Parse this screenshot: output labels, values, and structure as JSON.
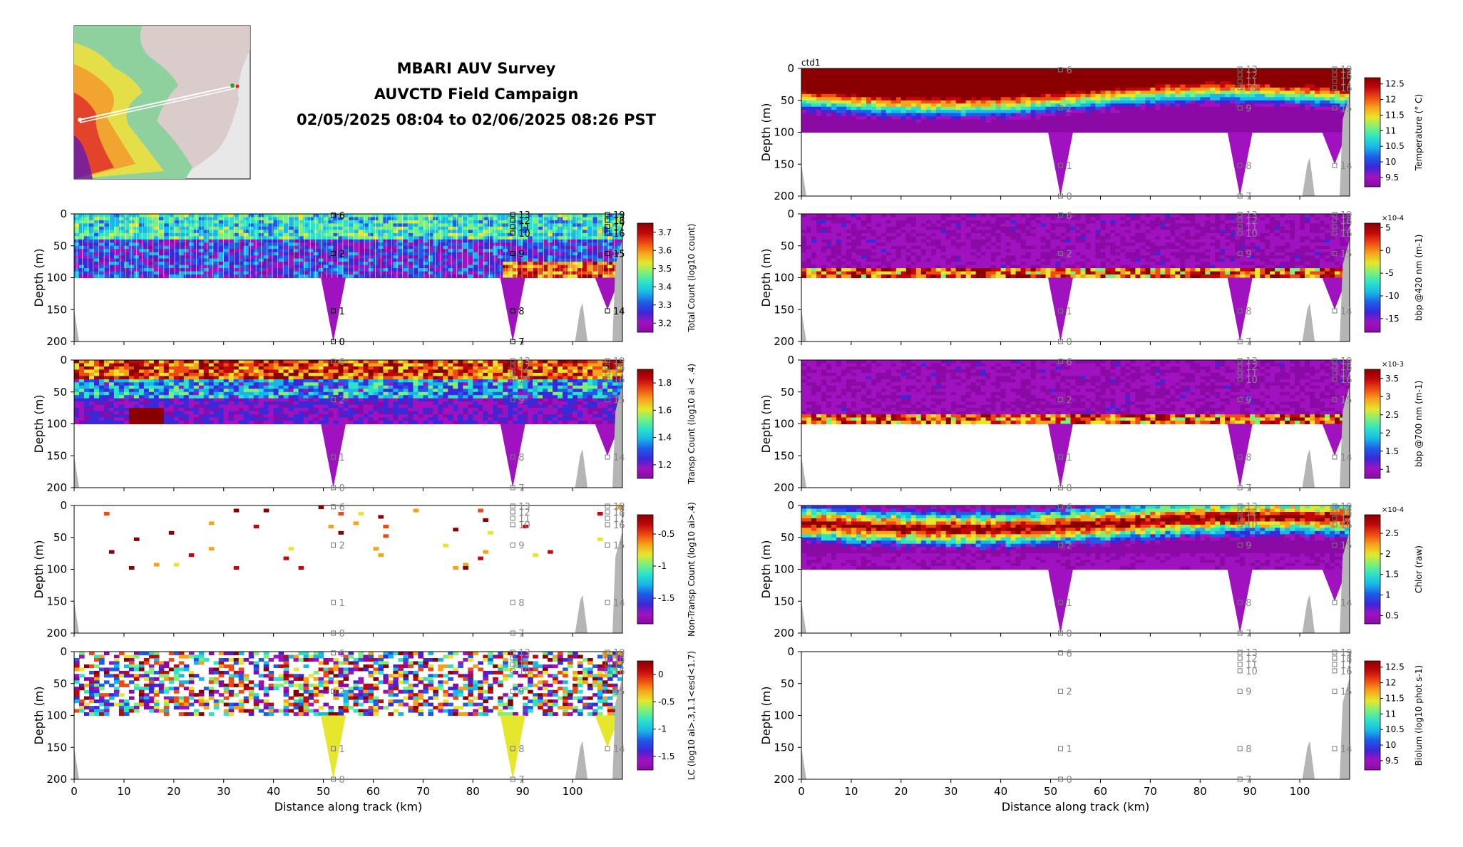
{
  "header": {
    "line1": "MBARI AUV Survey",
    "line2": "AUVCTD Field Campaign",
    "line3": "02/05/2025 08:04 to 02/06/2025 08:26 PST"
  },
  "colors": {
    "cmap": [
      "#8b0aa5",
      "#a012c0",
      "#3a28d9",
      "#1e5ce8",
      "#18b7e8",
      "#2be3c9",
      "#7cf07a",
      "#e6e62c",
      "#f7a21b",
      "#ee4a12",
      "#c2070c",
      "#8a0000"
    ],
    "terrain": "#b5b5b5",
    "profile_line": "#ffffff"
  },
  "chart_data": [
    {
      "type": "heatmap",
      "panel": "total-count",
      "title": "",
      "xlabel": "",
      "ylabel": "Depth (m)",
      "xlim": [
        0,
        110
      ],
      "ylim": [
        200,
        0
      ],
      "xticks": [
        0,
        10,
        20,
        30,
        40,
        50,
        60,
        70,
        80,
        90,
        100
      ],
      "yticks": [
        0,
        50,
        100,
        150,
        200
      ],
      "colorbar": {
        "label": "Total Count (log10 count)",
        "ticks": [
          "3.2",
          "3.3",
          "3.4",
          "3.5",
          "3.6",
          "3.7"
        ],
        "range": [
          3.15,
          3.75
        ]
      },
      "markers": [
        {
          "label": "0",
          "x": 52,
          "depth": 200
        },
        {
          "label": "1",
          "x": 52,
          "depth": 152
        },
        {
          "label": "2",
          "x": 52,
          "depth": 62
        },
        {
          "label": "6",
          "x": 52,
          "depth": 2
        },
        {
          "label": "7",
          "x": 88,
          "depth": 200
        },
        {
          "label": "8",
          "x": 88,
          "depth": 152
        },
        {
          "label": "9",
          "x": 88,
          "depth": 62
        },
        {
          "label": "10",
          "x": 88,
          "depth": 30
        },
        {
          "label": "11",
          "x": 88,
          "depth": 20
        },
        {
          "label": "12",
          "x": 88,
          "depth": 10
        },
        {
          "label": "13",
          "x": 88,
          "depth": 1
        },
        {
          "label": "14",
          "x": 107,
          "depth": 152
        },
        {
          "label": "15",
          "x": 107,
          "depth": 62
        },
        {
          "label": "16",
          "x": 107,
          "depth": 30
        },
        {
          "label": "17",
          "x": 107,
          "depth": 20
        },
        {
          "label": "18",
          "x": 107,
          "depth": 10
        },
        {
          "label": "19",
          "x": 107,
          "depth": 1
        }
      ]
    },
    {
      "type": "heatmap",
      "panel": "transp-count",
      "title": "",
      "xlabel": "",
      "ylabel": "Depth (m)",
      "xlim": [
        0,
        110
      ],
      "ylim": [
        200,
        0
      ],
      "xticks": [
        0,
        10,
        20,
        30,
        40,
        50,
        60,
        70,
        80,
        90,
        100
      ],
      "yticks": [
        0,
        50,
        100,
        150,
        200
      ],
      "colorbar": {
        "label": "Transp Count (log10 ai < .4)",
        "ticks": [
          "1.2",
          "1.4",
          "1.6",
          "1.8"
        ],
        "range": [
          1.1,
          1.9
        ]
      }
    },
    {
      "type": "heatmap",
      "panel": "non-transp-count",
      "title": "",
      "xlabel": "",
      "ylabel": "Depth (m)",
      "xlim": [
        0,
        110
      ],
      "ylim": [
        200,
        0
      ],
      "xticks": [
        0,
        10,
        20,
        30,
        40,
        50,
        60,
        70,
        80,
        90,
        100
      ],
      "yticks": [
        0,
        50,
        100,
        150,
        200
      ],
      "colorbar": {
        "label": "Non-Transp Count (log10 ai>.4)",
        "ticks": [
          "-1.5",
          "-1",
          "-0.5"
        ],
        "range": [
          -1.9,
          -0.2
        ]
      }
    },
    {
      "type": "heatmap",
      "panel": "lc",
      "title": "",
      "xlabel": "Distance along track (km)",
      "ylabel": "Depth (m)",
      "xlim": [
        0,
        110
      ],
      "ylim": [
        200,
        0
      ],
      "xticks": [
        0,
        10,
        20,
        30,
        40,
        50,
        60,
        70,
        80,
        90,
        100
      ],
      "yticks": [
        0,
        50,
        100,
        150,
        200
      ],
      "colorbar": {
        "label": "LC (log10 ai>.3,1.1<esd<1.7)",
        "ticks": [
          "-1.5",
          "-1",
          "-0.5",
          "0"
        ],
        "range": [
          -1.75,
          0.25
        ]
      }
    },
    {
      "type": "heatmap",
      "panel": "temperature",
      "title": "ctd1",
      "xlabel": "",
      "ylabel": "Depth (m)",
      "xlim": [
        0,
        110
      ],
      "ylim": [
        200,
        0
      ],
      "xticks": [
        0,
        10,
        20,
        30,
        40,
        50,
        60,
        70,
        80,
        90,
        100
      ],
      "yticks": [
        0,
        50,
        100,
        150,
        200
      ],
      "colorbar": {
        "label": "Temperature (° C)",
        "ticks": [
          "9.5",
          "10",
          "10.5",
          "11",
          "11.5",
          "12",
          "12.5"
        ],
        "range": [
          9.2,
          12.7
        ]
      }
    },
    {
      "type": "heatmap",
      "panel": "bbp420",
      "title": "",
      "xlabel": "",
      "ylabel": "Depth (m)",
      "xlim": [
        0,
        110
      ],
      "ylim": [
        200,
        0
      ],
      "xticks": [
        0,
        10,
        20,
        30,
        40,
        50,
        60,
        70,
        80,
        90,
        100
      ],
      "yticks": [
        0,
        50,
        100,
        150,
        200
      ],
      "colorbar": {
        "label": "bbp @420 nm (m-1)",
        "exponent": "×10-4",
        "ticks": [
          "-15",
          "-10",
          "-5",
          "0",
          "5"
        ],
        "range": [
          -18,
          6
        ]
      }
    },
    {
      "type": "heatmap",
      "panel": "bbp700",
      "title": "",
      "xlabel": "",
      "ylabel": "Depth (m)",
      "xlim": [
        0,
        110
      ],
      "ylim": [
        200,
        0
      ],
      "xticks": [
        0,
        10,
        20,
        30,
        40,
        50,
        60,
        70,
        80,
        90,
        100
      ],
      "yticks": [
        0,
        50,
        100,
        150,
        200
      ],
      "colorbar": {
        "label": "bbp @700 nm (m-1)",
        "exponent": "×10-3",
        "ticks": [
          "1",
          "1.5",
          "2",
          "2.5",
          "3",
          "3.5"
        ],
        "range": [
          0.75,
          3.75
        ]
      }
    },
    {
      "type": "heatmap",
      "panel": "chlor",
      "title": "",
      "xlabel": "",
      "ylabel": "Depth (m)",
      "xlim": [
        0,
        110
      ],
      "ylim": [
        200,
        0
      ],
      "xticks": [
        0,
        10,
        20,
        30,
        40,
        50,
        60,
        70,
        80,
        90,
        100
      ],
      "yticks": [
        0,
        50,
        100,
        150,
        200
      ],
      "colorbar": {
        "label": "Chlor (raw)",
        "exponent": "×10-4",
        "ticks": [
          "0.5",
          "1",
          "1.5",
          "2",
          "2.5"
        ],
        "range": [
          0.3,
          2.95
        ]
      }
    },
    {
      "type": "heatmap",
      "panel": "biolum",
      "title": "",
      "xlabel": "Distance along track (km)",
      "ylabel": "Depth (m)",
      "xlim": [
        0,
        110
      ],
      "ylim": [
        200,
        0
      ],
      "xticks": [
        0,
        10,
        20,
        30,
        40,
        50,
        60,
        70,
        80,
        90,
        100
      ],
      "yticks": [
        0,
        50,
        100,
        150,
        200
      ],
      "colorbar": {
        "label": "Biolum (log10 phot s-1)",
        "ticks": [
          "9.5",
          "10",
          "10.5",
          "11",
          "11.5",
          "12",
          "12.5"
        ],
        "range": [
          9.2,
          12.7
        ]
      }
    }
  ]
}
